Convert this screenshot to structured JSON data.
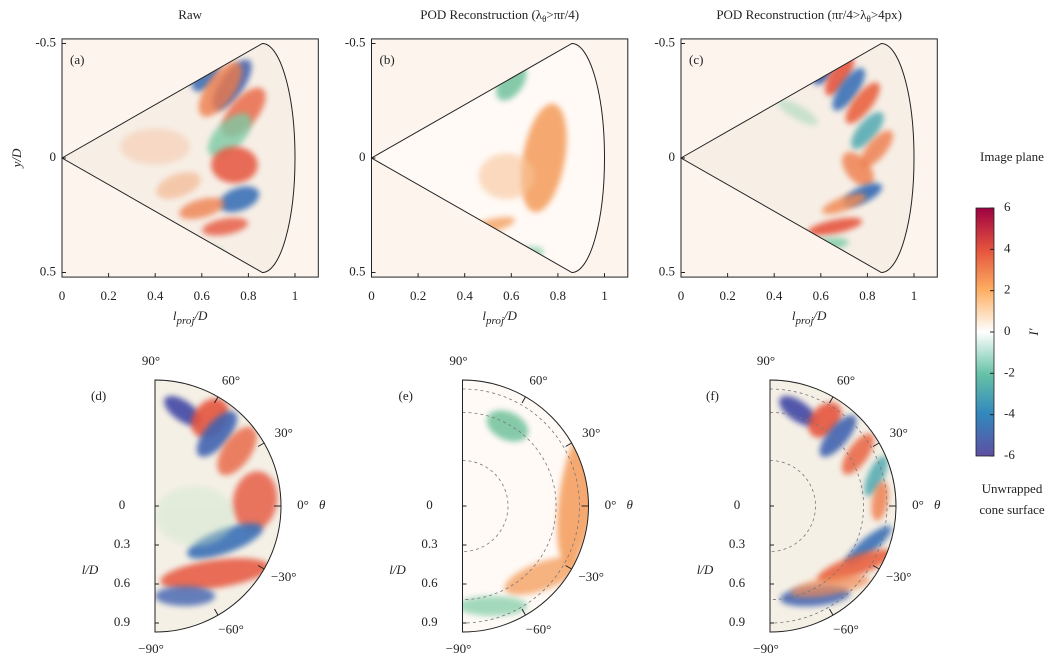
{
  "panels_top": [
    {
      "label": "(a)",
      "title": [
        "Raw"
      ]
    },
    {
      "label": "(b)",
      "title": [
        "POD Reconstruction (λ",
        "θ",
        ">πr/4)"
      ]
    },
    {
      "label": "(c)",
      "title": [
        "POD Reconstruction (πr/4>λ",
        "θ",
        ">4px)"
      ]
    }
  ],
  "panels_bottom": [
    {
      "label": "(d)"
    },
    {
      "label": "(e)"
    },
    {
      "label": "(f)"
    }
  ],
  "top_axes": {
    "xlabel": {
      "base": "l",
      "sub": "proj",
      "rest": "/D"
    },
    "ylabel": "y/D",
    "xlim": [
      0,
      1.1
    ],
    "xticks": [
      0,
      0.2,
      0.4,
      0.6,
      0.8,
      1
    ],
    "ylim": [
      -0.52,
      0.52
    ],
    "yticks": [
      -0.5,
      0,
      0.5
    ]
  },
  "bottom_axes": {
    "theta_label": "θ",
    "theta_ticks": [
      {
        "value": 90,
        "label": "90°"
      },
      {
        "value": 60,
        "label": "60°"
      },
      {
        "value": 30,
        "label": "30°"
      },
      {
        "value": 0,
        "label": "0°"
      },
      {
        "value": -30,
        "label": "−30°"
      },
      {
        "value": -60,
        "label": "−60°"
      },
      {
        "value": -90,
        "label": "−90°"
      }
    ],
    "r_label": "l/D",
    "r_ticks": [
      0,
      0.3,
      0.6,
      0.9
    ]
  },
  "colorbar": {
    "label": "I′",
    "lim": [
      -6,
      6
    ],
    "ticks": [
      6,
      4,
      2,
      0,
      -2,
      -4,
      -6
    ]
  },
  "row_labels": [
    [
      "Image plane"
    ],
    [
      "Unwrapped",
      "cone surface"
    ]
  ]
}
